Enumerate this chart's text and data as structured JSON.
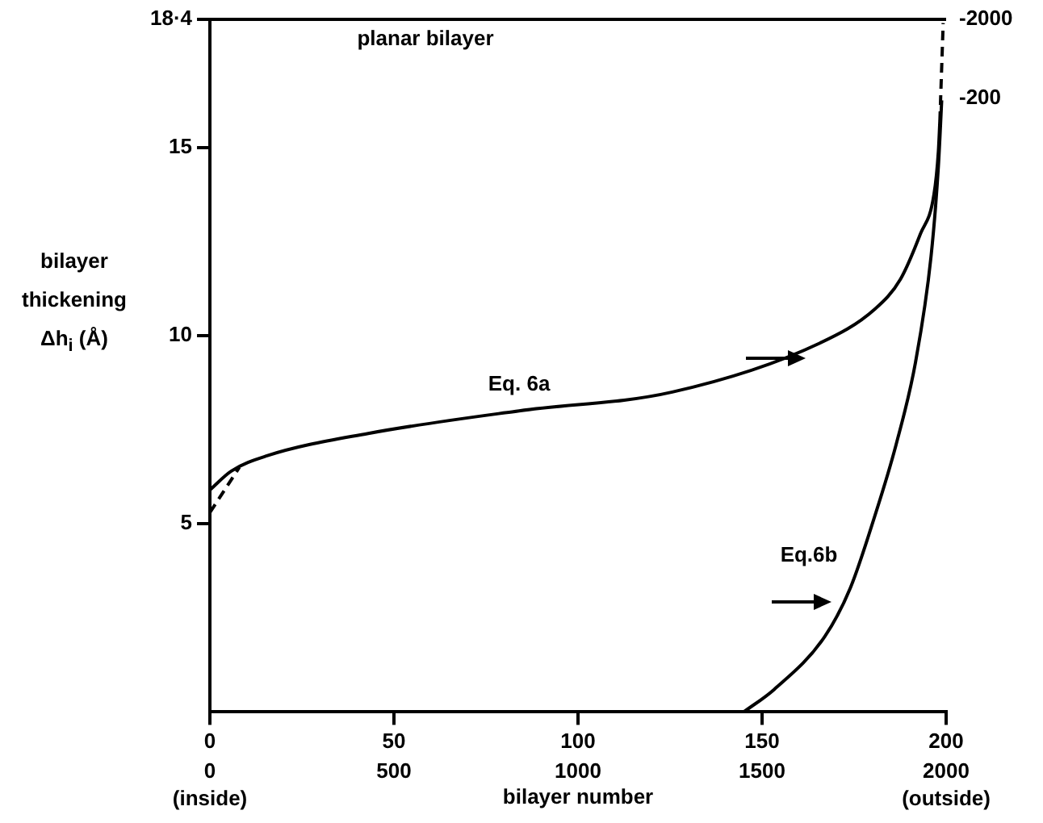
{
  "chart_data": {
    "type": "line",
    "xlabel": "bilayer number",
    "ylabel": "bilayer thickening Δh$_{i}$ (Å)",
    "xlim": [
      0,
      200
    ],
    "xticks": [
      0,
      50,
      100,
      150,
      200
    ],
    "x2lim": [
      0,
      2000
    ],
    "x2ticks": [
      0,
      500,
      1000,
      1500,
      2000
    ],
    "ylim": [
      0,
      18.4
    ],
    "yticks": [
      5,
      10,
      15,
      {
        "value": 18.4,
        "label": "18·4"
      }
    ],
    "grid": false,
    "legend": false,
    "marker": "none",
    "series": [
      {
        "name": "Eq. 6a",
        "color": "#000000",
        "line_style": "solid",
        "x": [
          0,
          5.8,
          15.3,
          43,
          84,
          125.6,
          165.7,
          180.6,
          187.6,
          193,
          196.7,
          197.9,
          198.3
        ],
        "values": [
          5.9,
          6.4,
          6.8,
          7.4,
          8.0,
          8.5,
          9.8,
          10.7,
          11.5,
          12.7,
          13.75,
          14.9,
          15.7
        ]
      },
      {
        "color": "#000000",
        "line_style": "dashed",
        "x": [
          198.3,
          199.2
        ],
        "values": [
          15.7,
          18.3
        ]
      },
      {
        "color": "#000000",
        "line_style": "dashed",
        "x": [
          0,
          4,
          8
        ],
        "values": [
          5.3,
          5.9,
          6.5
        ]
      },
      {
        "name": "Eq.6b",
        "color": "#000000",
        "line_style": "solid",
        "x": [
          145,
          153.3,
          167,
          174,
          180.6,
          186.4,
          191.7,
          195.9,
          197.9,
          198.8
        ],
        "values": [
          0,
          0.6,
          2.0,
          3.3,
          5.2,
          7.1,
          9.3,
          12.1,
          14.5,
          16.25
        ]
      }
    ],
    "ref_lines": [
      {
        "axis": "y",
        "value": 18.4,
        "label": "planar bilayer",
        "color": "#000000"
      }
    ],
    "annotations": [
      "(inside)",
      "(outside)",
      {
        "text": "-2000",
        "x": 200,
        "y": 18.4
      },
      {
        "text": "-200",
        "x": 200,
        "y": 16.3
      }
    ]
  }
}
